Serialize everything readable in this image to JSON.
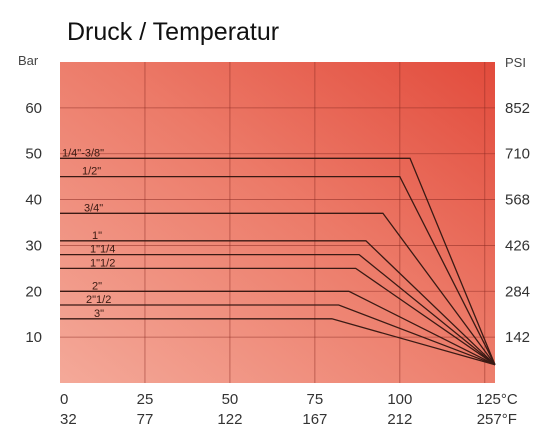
{
  "chart_data": {
    "type": "line",
    "title": "Druck / Temperatur",
    "y_left_unit": "Bar",
    "y_right_unit": "PSI",
    "x_primary_unit": "°C",
    "x_secondary_unit": "°F",
    "xlim": [
      0,
      125
    ],
    "ylim": [
      0,
      70
    ],
    "grid": true,
    "background": "#ea6a5a",
    "x_ticks": [
      {
        "c": 0,
        "label_c": "0",
        "label_f": "32"
      },
      {
        "c": 25,
        "label_c": "25",
        "label_f": "77"
      },
      {
        "c": 50,
        "label_c": "50",
        "label_f": "122"
      },
      {
        "c": 75,
        "label_c": "75",
        "label_f": "167"
      },
      {
        "c": 100,
        "label_c": "100",
        "label_f": "212"
      },
      {
        "c": 125,
        "label_c": "125°C",
        "label_f": "257°F"
      }
    ],
    "y_left_ticks": [
      {
        "v": 10,
        "label": "10"
      },
      {
        "v": 20,
        "label": "20"
      },
      {
        "v": 30,
        "label": "30"
      },
      {
        "v": 40,
        "label": "40"
      },
      {
        "v": 50,
        "label": "50"
      },
      {
        "v": 60,
        "label": "60"
      }
    ],
    "y_right_ticks": [
      {
        "v": 10,
        "label": "142"
      },
      {
        "v": 20,
        "label": "284"
      },
      {
        "v": 30,
        "label": "426"
      },
      {
        "v": 40,
        "label": "568"
      },
      {
        "v": 50,
        "label": "710"
      },
      {
        "v": 60,
        "label": "852"
      }
    ],
    "series": [
      {
        "name": "1/4\"-3/8\"",
        "points": [
          [
            0,
            49
          ],
          [
            103,
            49
          ],
          [
            128,
            4
          ]
        ]
      },
      {
        "name": "1/2\"",
        "points": [
          [
            0,
            45
          ],
          [
            100,
            45
          ],
          [
            128,
            4
          ]
        ]
      },
      {
        "name": "3/4\"",
        "points": [
          [
            0,
            37
          ],
          [
            95,
            37
          ],
          [
            128,
            4
          ]
        ]
      },
      {
        "name": "1\"",
        "points": [
          [
            0,
            31
          ],
          [
            90,
            31
          ],
          [
            128,
            4
          ]
        ]
      },
      {
        "name": "1\"1/4",
        "points": [
          [
            0,
            28
          ],
          [
            88,
            28
          ],
          [
            128,
            4
          ]
        ]
      },
      {
        "name": "1\"1/2",
        "points": [
          [
            0,
            25
          ],
          [
            87,
            25
          ],
          [
            128,
            4
          ]
        ]
      },
      {
        "name": "2\"",
        "points": [
          [
            0,
            20
          ],
          [
            85,
            20
          ],
          [
            128,
            4
          ]
        ]
      },
      {
        "name": "2\"1/2",
        "points": [
          [
            0,
            17
          ],
          [
            82,
            17
          ],
          [
            128,
            4
          ]
        ]
      },
      {
        "name": "3\"",
        "points": [
          [
            0,
            14
          ],
          [
            80,
            14
          ],
          [
            128,
            4
          ]
        ]
      }
    ]
  }
}
